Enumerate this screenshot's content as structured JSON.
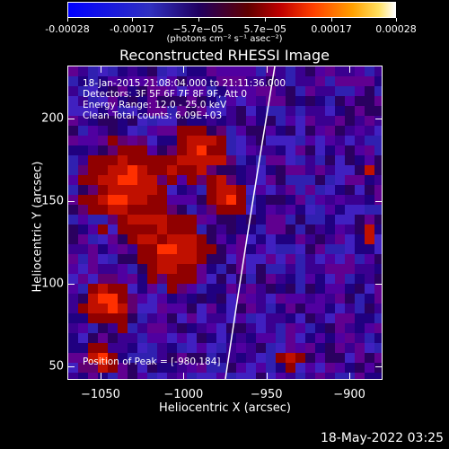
{
  "colorbar": {
    "tick_labels": [
      "-0.00028",
      "-0.00017",
      "−5.7e−05",
      "5.7e−05",
      "0.00017",
      "0.00028"
    ],
    "tick_values": [
      -0.00028,
      -0.00017,
      -5.7e-05,
      5.7e-05,
      0.00017,
      0.00028
    ],
    "unit_label": "(photons cm⁻² s⁻¹ asec⁻²)",
    "colormap_stops": [
      "#0000ff",
      "#4040d0",
      "#000000",
      "#400060",
      "#a00000",
      "#ff3000",
      "#ff9000",
      "#ffd000",
      "#ffffff"
    ]
  },
  "title": "Reconstructed RHESSI Image",
  "info_lines": [
    "18-Jan-2015 21:08:04.000 to 21:11:36.000",
    "Detectors: 3F 5F 6F 7F 8F 9F, Att 0",
    "Energy Range: 12.0 - 25.0 keV",
    "Clean      Total counts: 6.09E+03"
  ],
  "peak_label": "Position of Peak = [-980,184]",
  "axes": {
    "xlabel": "Heliocentric X (arcsec)",
    "ylabel": "Heliocentric Y (arcsec)",
    "x_ticks": [
      "−1050",
      "−1000",
      "−950",
      "−900"
    ],
    "x_tick_values": [
      -1050,
      -1000,
      -950,
      -900
    ],
    "y_ticks": [
      "50",
      "100",
      "150",
      "200"
    ],
    "y_tick_values": [
      50,
      100,
      150,
      200
    ],
    "xlim": [
      -1070,
      -880
    ],
    "ylim": [
      42,
      232
    ]
  },
  "timestamp": "18-May-2022 03:25",
  "colors": {
    "limb": "#ffffff",
    "bright": "#ffd000",
    "hot": "#ff3000",
    "cool": "#400060"
  }
}
